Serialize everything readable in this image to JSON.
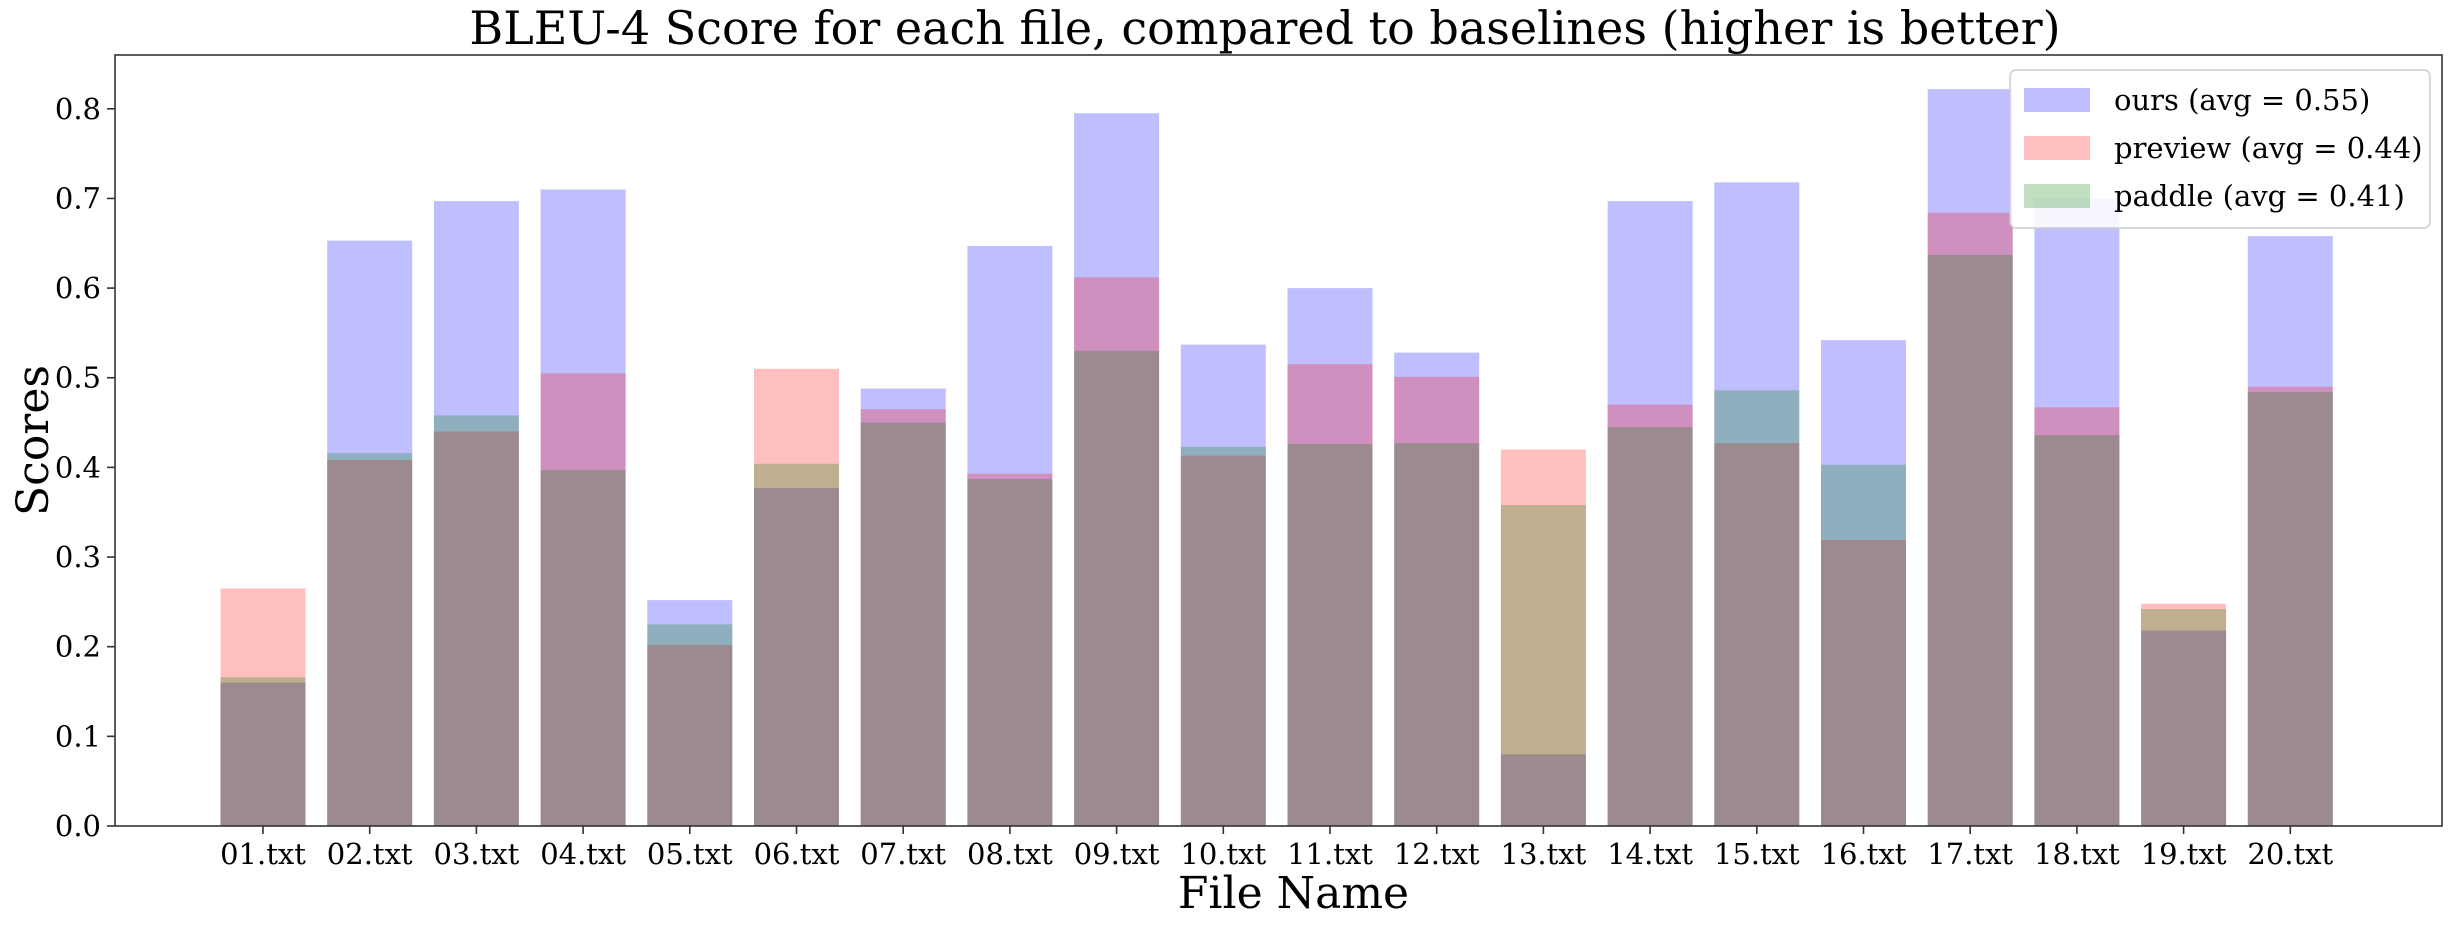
{
  "chart_data": {
    "type": "bar",
    "title": "BLEU-4 Score for each file, compared to baselines (higher is better)",
    "xlabel": "File Name",
    "ylabel": "Scores",
    "ylim": [
      0,
      0.86
    ],
    "yticks": [
      "0.0",
      "0.1",
      "0.2",
      "0.3",
      "0.4",
      "0.5",
      "0.6",
      "0.7",
      "0.8"
    ],
    "categories": [
      "01.txt",
      "02.txt",
      "03.txt",
      "04.txt",
      "05.txt",
      "06.txt",
      "07.txt",
      "08.txt",
      "09.txt",
      "10.txt",
      "11.txt",
      "12.txt",
      "13.txt",
      "14.txt",
      "15.txt",
      "16.txt",
      "17.txt",
      "18.txt",
      "19.txt",
      "20.txt"
    ],
    "grid": false,
    "legend_position": "top-right",
    "series": [
      {
        "name": "ours (avg = 0.55)",
        "color": "#0000ff",
        "alpha": 0.25,
        "values": [
          0.16,
          0.653,
          0.697,
          0.71,
          0.252,
          0.377,
          0.488,
          0.647,
          0.795,
          0.537,
          0.6,
          0.528,
          0.08,
          0.697,
          0.718,
          0.542,
          0.822,
          0.7,
          0.218,
          0.658
        ]
      },
      {
        "name": "preview (avg = 0.44)",
        "color": "#ff0000",
        "alpha": 0.25,
        "values": [
          0.265,
          0.408,
          0.44,
          0.505,
          0.202,
          0.51,
          0.465,
          0.393,
          0.612,
          0.413,
          0.515,
          0.501,
          0.42,
          0.47,
          0.427,
          0.319,
          0.684,
          0.467,
          0.248,
          0.49
        ]
      },
      {
        "name": "paddle (avg = 0.41)",
        "color": "#008000",
        "alpha": 0.25,
        "values": [
          0.166,
          0.416,
          0.458,
          0.397,
          0.225,
          0.404,
          0.45,
          0.387,
          0.53,
          0.423,
          0.426,
          0.427,
          0.358,
          0.445,
          0.486,
          0.403,
          0.637,
          0.436,
          0.242,
          0.484
        ]
      }
    ]
  }
}
